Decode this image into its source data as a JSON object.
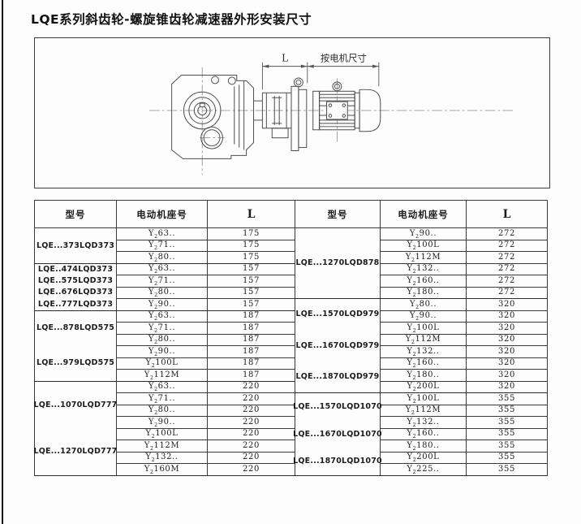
{
  "page": {
    "title": "LQE系列斜齿轮-螺旋锥齿轮减速器外形安装尺寸"
  },
  "drawing": {
    "dim_l_label": "L",
    "dim_motor_label": "按电机尺寸"
  },
  "table": {
    "headers": {
      "model": "型号",
      "motor_frame": "电动机座号",
      "dim_l": "L"
    },
    "left_half": {
      "groups": [
        {
          "models": [
            "LQE...373LQD373"
          ],
          "rows": [
            [
              "Y{2}63..",
              "175"
            ],
            [
              "Y{2}71..",
              "175"
            ],
            [
              "Y{2}80..",
              "175"
            ]
          ]
        },
        {
          "models": [
            "LQE..474LQD373",
            "LQE..575LQD373",
            "LQE..676LQD373",
            "LQE..777LQD373"
          ],
          "rows": [
            [
              "Y{2}63..",
              "157"
            ],
            [
              "Y{2}71..",
              "157"
            ],
            [
              "Y{2}80..",
              "157"
            ],
            [
              "Y{2}90..",
              "157"
            ]
          ]
        },
        {
          "models": [
            "LQE...878LQD575",
            "LQE...979LQD575"
          ],
          "rows": [
            [
              "Y{2}63..",
              "187"
            ],
            [
              "Y{2}71..",
              "187"
            ],
            [
              "Y{2}80..",
              "187"
            ],
            [
              "Y{2}90..",
              "187"
            ],
            [
              "Y{2}100L",
              "187"
            ],
            [
              "Y{2}112M",
              "187"
            ]
          ]
        },
        {
          "models": [
            "LQE...1070LQD777",
            "LQE...1270LQD777"
          ],
          "rows": [
            [
              "Y{2}63..",
              "220"
            ],
            [
              "Y{2}71..",
              "220"
            ],
            [
              "Y{2}80..",
              "220"
            ],
            [
              "Y{2}90..",
              "220"
            ],
            [
              "Y{2}100L",
              "220"
            ],
            [
              "Y{2}112M",
              "220"
            ],
            [
              "Y{2}132..",
              "220"
            ],
            [
              "Y{2}160M",
              "220"
            ]
          ]
        }
      ]
    },
    "right_half": {
      "groups": [
        {
          "models": [
            "LQE...1270LQD878"
          ],
          "rows": [
            [
              "Y{2}90..",
              "272"
            ],
            [
              "Y{2}100L",
              "272"
            ],
            [
              "Y{2}112M",
              "272"
            ],
            [
              "Y{2}132..",
              "272"
            ],
            [
              "Y{2}160..",
              "272"
            ],
            [
              "Y{2}180..",
              "272"
            ]
          ]
        },
        {
          "models": [
            "LQE...1570LQD979",
            "LQE...1670LQD979",
            "LQE...1870LQD979"
          ],
          "rows": [
            [
              "Y{2}80..",
              "320"
            ],
            [
              "Y{2}90..",
              "320"
            ],
            [
              "Y{2}100L",
              "320"
            ],
            [
              "Y{2}112M",
              "320"
            ],
            [
              "Y{2}132..",
              "320"
            ],
            [
              "Y{2}160..",
              "320"
            ],
            [
              "Y{2}180..",
              "320"
            ],
            [
              "Y{2}200L",
              "320"
            ]
          ]
        },
        {
          "models": [
            "LQE...1570LQD1070",
            "LQE...1670LQD1070",
            "LQE...1870LQD1070"
          ],
          "rows": [
            [
              "Y{2}100L",
              "355"
            ],
            [
              "Y{2}112M",
              "355"
            ],
            [
              "Y{2}132..",
              "355"
            ],
            [
              "Y{2}160..",
              "355"
            ],
            [
              "Y{2}180..",
              "355"
            ],
            [
              "Y{2}200L",
              "355"
            ],
            [
              "Y{2}225..",
              "355"
            ]
          ]
        }
      ]
    }
  }
}
